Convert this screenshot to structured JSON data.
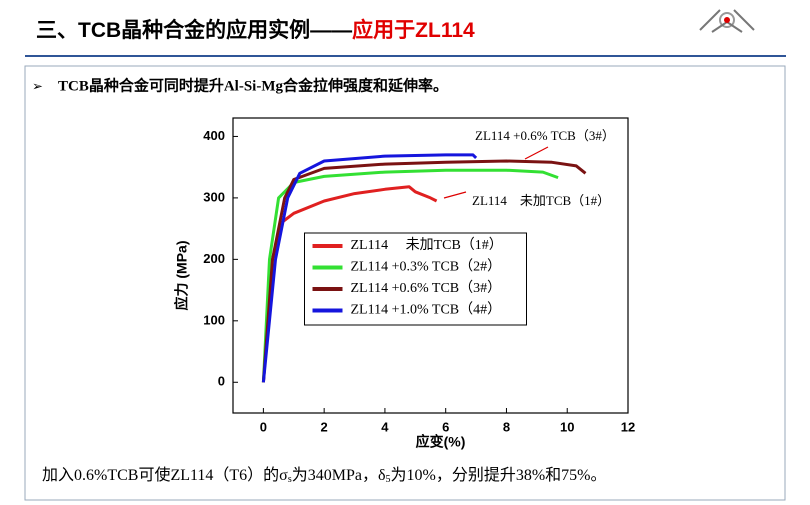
{
  "header": {
    "title": "三、TCB晶种合金的应用实例——",
    "title_highlight": "应用于ZL114"
  },
  "bullet": "TCB晶种合金可同时提升Al-Si-Mg合金拉伸强度和延伸率。",
  "chart_data": {
    "type": "line",
    "x_label": "应变(%)",
    "y_label": "应力 (MPa)",
    "xlim": [
      -1,
      12
    ],
    "xticks": [
      0,
      2,
      4,
      6,
      8,
      10,
      12
    ],
    "ylim": [
      -50,
      430
    ],
    "yticks": [
      0,
      100,
      200,
      300,
      400
    ],
    "legend": "lower center",
    "annotations": [
      "ZL114 +0.6% TCB（3#）",
      "ZL114　未加TCB（1#）"
    ],
    "series": [
      {
        "name": "ZL114　 未加TCB（1#）",
        "color": "#e02020",
        "x": [
          0,
          0.3,
          0.6,
          1,
          2,
          3,
          4,
          4.8,
          5,
          5.5,
          5.7
        ],
        "values": [
          0,
          200,
          260,
          275,
          295,
          307,
          314,
          318,
          310,
          300,
          295
        ]
      },
      {
        "name": "ZL114 +0.3% TCB（2#）",
        "color": "#33e033",
        "x": [
          0,
          0.2,
          0.5,
          1,
          2,
          4,
          6,
          8,
          9.2,
          9.7
        ],
        "values": [
          0,
          200,
          300,
          325,
          335,
          342,
          345,
          345,
          342,
          333
        ]
      },
      {
        "name": "ZL114 +0.6% TCB（3#）",
        "color": "#7a1212",
        "x": [
          0,
          0.3,
          0.7,
          1,
          2,
          4,
          6,
          8,
          9.5,
          10.3,
          10.6
        ],
        "values": [
          0,
          200,
          300,
          330,
          348,
          355,
          358,
          360,
          358,
          352,
          340
        ]
      },
      {
        "name": "ZL114 +1.0% TCB（4#）",
        "color": "#1515dd",
        "x": [
          0,
          0.4,
          0.8,
          1.2,
          2,
          4,
          6,
          6.9,
          7
        ],
        "values": [
          0,
          200,
          300,
          340,
          360,
          368,
          370,
          370,
          365
        ]
      }
    ]
  },
  "footer": [
    "加入0.6%TCB可使ZL114（T6）的σ",
    "s",
    "为340MPa，δ",
    "5",
    "为10%，分别提升38%和75%。"
  ]
}
